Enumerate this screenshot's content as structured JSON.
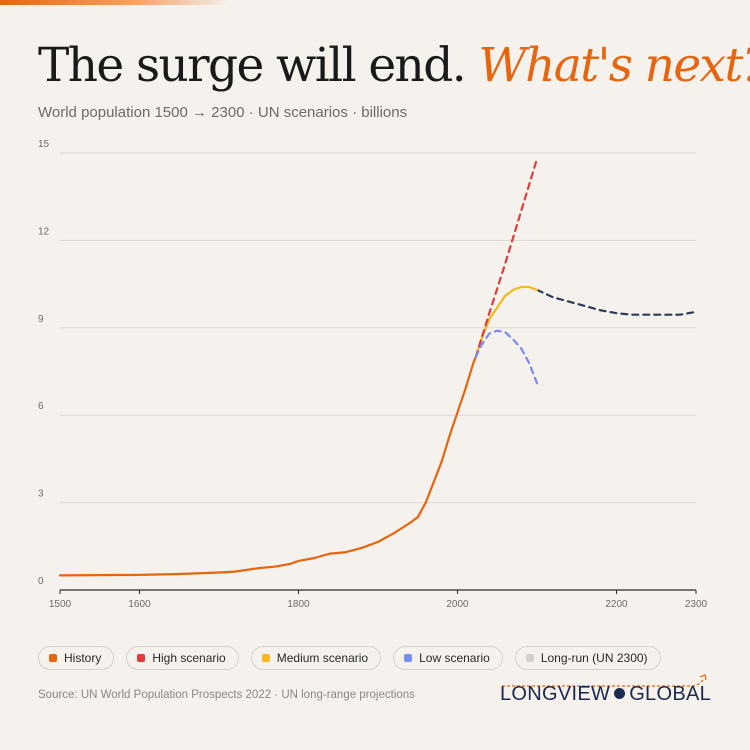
{
  "header": {
    "title_part1": "The surge will end.",
    "title_part2": "What's next?",
    "subtitle": "World population 1500 → 2300 · UN scenarios · billions"
  },
  "colors": {
    "accent": "#e8650f",
    "history": "#e8650f",
    "high": "#e03c3c",
    "medium": "#f5b71c",
    "low": "#7d8cf0",
    "longrun": "#2e3a59",
    "brand": "#1c2a4d"
  },
  "chart_data": {
    "type": "line",
    "title": "",
    "xlabel": "",
    "ylabel": "",
    "xlim": [
      1500,
      2300
    ],
    "ylim": [
      0,
      15
    ],
    "x_ticks": [
      1500,
      1600,
      1800,
      2000,
      2200,
      2300
    ],
    "y_ticks": [
      0,
      3,
      6,
      9,
      12,
      15
    ],
    "grid": "horizontal",
    "legend_position": "bottom",
    "series": [
      {
        "name": "History",
        "style": "solid",
        "color": "#e8650f",
        "points": [
          [
            1500,
            0.5
          ],
          [
            1550,
            0.51
          ],
          [
            1600,
            0.52
          ],
          [
            1650,
            0.55
          ],
          [
            1700,
            0.6
          ],
          [
            1720,
            0.63
          ],
          [
            1750,
            0.75
          ],
          [
            1770,
            0.8
          ],
          [
            1790,
            0.9
          ],
          [
            1800,
            1.0
          ],
          [
            1820,
            1.1
          ],
          [
            1840,
            1.25
          ],
          [
            1860,
            1.3
          ],
          [
            1880,
            1.45
          ],
          [
            1900,
            1.65
          ],
          [
            1920,
            1.95
          ],
          [
            1940,
            2.3
          ],
          [
            1950,
            2.5
          ],
          [
            1960,
            3.0
          ],
          [
            1970,
            3.7
          ],
          [
            1980,
            4.4
          ],
          [
            1990,
            5.3
          ],
          [
            2000,
            6.1
          ],
          [
            2010,
            6.9
          ],
          [
            2020,
            7.8
          ],
          [
            2023,
            8.0
          ]
        ]
      },
      {
        "name": "High scenario",
        "style": "dashed",
        "color": "#e03c3c",
        "points": [
          [
            2023,
            8.0
          ],
          [
            2040,
            9.5
          ],
          [
            2060,
            11.2
          ],
          [
            2080,
            13.0
          ],
          [
            2100,
            14.8
          ]
        ]
      },
      {
        "name": "Medium scenario",
        "style": "solid",
        "color": "#f5b71c",
        "points": [
          [
            2023,
            8.0
          ],
          [
            2030,
            8.6
          ],
          [
            2040,
            9.3
          ],
          [
            2050,
            9.7
          ],
          [
            2060,
            10.1
          ],
          [
            2070,
            10.3
          ],
          [
            2080,
            10.4
          ],
          [
            2090,
            10.4
          ],
          [
            2100,
            10.3
          ]
        ]
      },
      {
        "name": "Low scenario",
        "style": "dashed",
        "color": "#7d8cf0",
        "points": [
          [
            2023,
            8.0
          ],
          [
            2030,
            8.4
          ],
          [
            2040,
            8.8
          ],
          [
            2050,
            8.9
          ],
          [
            2060,
            8.85
          ],
          [
            2070,
            8.6
          ],
          [
            2080,
            8.3
          ],
          [
            2090,
            7.8
          ],
          [
            2100,
            7.1
          ]
        ]
      },
      {
        "name": "Long-run (UN 2300)",
        "style": "dashed",
        "color": "#2e3a59",
        "points": [
          [
            2100,
            10.3
          ],
          [
            2120,
            10.05
          ],
          [
            2140,
            9.9
          ],
          [
            2160,
            9.75
          ],
          [
            2180,
            9.6
          ],
          [
            2200,
            9.5
          ],
          [
            2220,
            9.45
          ],
          [
            2240,
            9.45
          ],
          [
            2260,
            9.45
          ],
          [
            2280,
            9.45
          ],
          [
            2300,
            9.55
          ]
        ]
      }
    ]
  },
  "legend": [
    {
      "label": "History",
      "color": "#e8650f"
    },
    {
      "label": "High scenario",
      "color": "#e03c3c"
    },
    {
      "label": "Medium scenario",
      "color": "#f5b71c"
    },
    {
      "label": "Low scenario",
      "color": "#7d8cf0"
    },
    {
      "label": "Long-run (UN 2300)",
      "color": "#d3cfca"
    }
  ],
  "footer": {
    "source": "Source: UN World Population Prospects 2022 · UN long-range projections",
    "brand_part1": "LONGVIEW",
    "brand_part2": "GLOBAL"
  }
}
